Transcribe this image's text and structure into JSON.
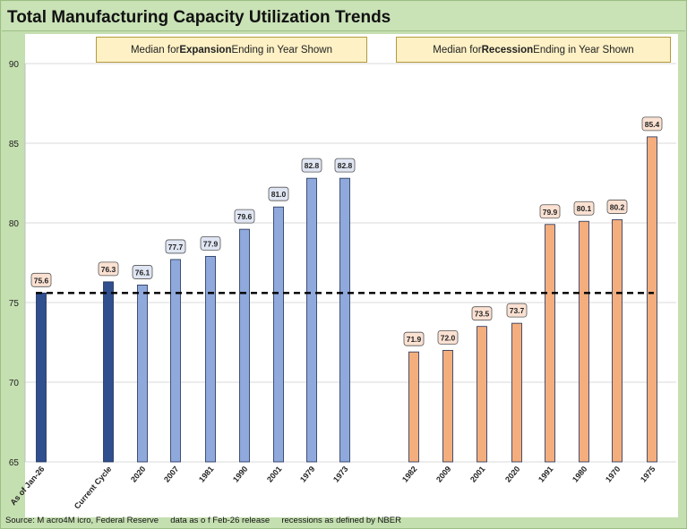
{
  "title": "Total Manufacturing Capacity Utilization Trends",
  "headers": {
    "expansion": {
      "pre": "Median  for ",
      "bold": "Expansion",
      "post": " Ending in  Year Shown"
    },
    "recession": {
      "pre": "Median  for ",
      "bold": "Recession",
      "post": " Ending in  Year Shown"
    }
  },
  "footer": "Source: M acro4M icro, Federal Reserve     data as o f Feb-26 release     recessions as defined by NBER",
  "colors": {
    "current": "#2f4f8f",
    "expansion": "#8fa9dc",
    "recession": "#f4ae7e",
    "label_exp_fill": "#dfe5f2",
    "label_rec_fill": "#fbe1d2",
    "dashed_line": "#000000"
  },
  "chart_data": {
    "type": "bar",
    "ylim": [
      65,
      90
    ],
    "yticks": [
      65,
      70,
      75,
      80,
      85,
      90
    ],
    "grid": true,
    "reference_line": {
      "value": 75.6,
      "style": "dashed"
    },
    "groups": [
      {
        "name": "current",
        "categories": [
          "As of Jan-26",
          "Current Cycle"
        ],
        "values": [
          75.6,
          76.3
        ]
      },
      {
        "name": "expansion",
        "categories": [
          "2020",
          "2007",
          "1981",
          "1990",
          "2001",
          "1979",
          "1973"
        ],
        "values": [
          76.1,
          77.7,
          77.9,
          79.6,
          81.0,
          82.8,
          82.8
        ]
      },
      {
        "name": "recession",
        "categories": [
          "1982",
          "2009",
          "2001",
          "2020",
          "1991",
          "1980",
          "1970",
          "1975"
        ],
        "values": [
          71.9,
          72.0,
          73.5,
          73.7,
          79.9,
          80.1,
          80.2,
          85.4
        ]
      }
    ]
  }
}
